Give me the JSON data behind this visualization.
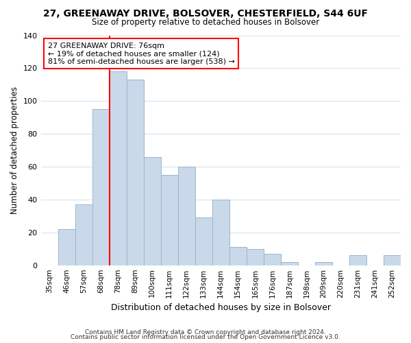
{
  "title": "27, GREENAWAY DRIVE, BOLSOVER, CHESTERFIELD, S44 6UF",
  "subtitle": "Size of property relative to detached houses in Bolsover",
  "xlabel": "Distribution of detached houses by size in Bolsover",
  "ylabel": "Number of detached properties",
  "bar_labels": [
    "35sqm",
    "46sqm",
    "57sqm",
    "68sqm",
    "78sqm",
    "89sqm",
    "100sqm",
    "111sqm",
    "122sqm",
    "133sqm",
    "144sqm",
    "154sqm",
    "165sqm",
    "176sqm",
    "187sqm",
    "198sqm",
    "209sqm",
    "220sqm",
    "231sqm",
    "241sqm",
    "252sqm"
  ],
  "bar_values": [
    0,
    22,
    37,
    95,
    118,
    113,
    66,
    55,
    60,
    29,
    40,
    11,
    10,
    7,
    2,
    0,
    2,
    0,
    6,
    0,
    6
  ],
  "bar_color": "#c9d9ea",
  "bar_edge_color": "#9ab5cc",
  "vline_color": "red",
  "annotation_title": "27 GREENAWAY DRIVE: 76sqm",
  "annotation_line1": "← 19% of detached houses are smaller (124)",
  "annotation_line2": "81% of semi-detached houses are larger (538) →",
  "annotation_box_color": "white",
  "annotation_box_edge": "red",
  "ylim": [
    0,
    140
  ],
  "yticks": [
    0,
    20,
    40,
    60,
    80,
    100,
    120,
    140
  ],
  "footer1": "Contains HM Land Registry data © Crown copyright and database right 2024.",
  "footer2": "Contains public sector information licensed under the Open Government Licence v3.0.",
  "background_color": "#ffffff",
  "plot_bg_color": "#ffffff",
  "grid_color": "#d8e4ee"
}
